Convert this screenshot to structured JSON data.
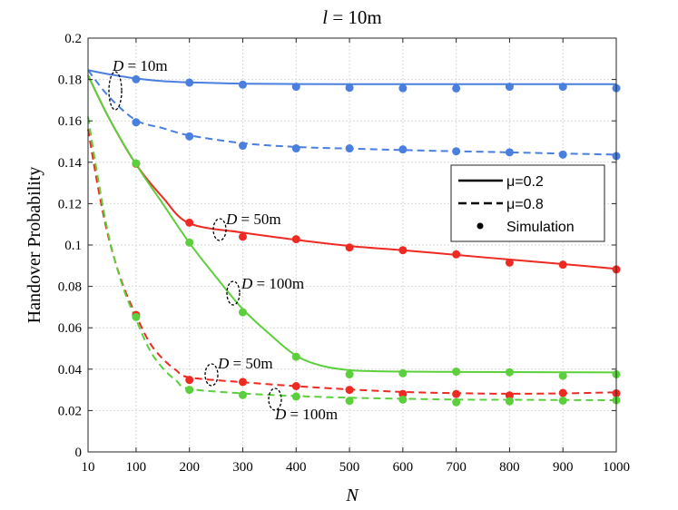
{
  "chart_data": {
    "type": "line",
    "title": {
      "var": "l",
      "rest": " = 10m"
    },
    "xlabel": "N",
    "ylabel": "Handover Probability",
    "xlim": [
      10,
      1000
    ],
    "ylim": [
      0,
      0.2
    ],
    "xticks": [
      10,
      100,
      200,
      300,
      400,
      500,
      600,
      700,
      800,
      900,
      1000
    ],
    "yticks": [
      0,
      0.02,
      0.04,
      0.06,
      0.08,
      0.1,
      0.12,
      0.14,
      0.16,
      0.18,
      0.2
    ],
    "ytick_labels": [
      "0",
      "0.02",
      "0.04",
      "0.06",
      "0.08",
      "0.1",
      "0.12",
      "0.14",
      "0.16",
      "0.18",
      "0.2"
    ],
    "grid": true,
    "legend": {
      "position": "right",
      "entries": [
        {
          "label": "μ=0.2",
          "style": "solid"
        },
        {
          "label": "μ=0.8",
          "style": "dashed"
        },
        {
          "label": "Simulation",
          "style": "marker"
        }
      ]
    },
    "colors": {
      "D10": "#4a7fe0",
      "D50": "#ee2a22",
      "D100": "#5ccf3c"
    },
    "annotations": [
      {
        "label": "D = 10m",
        "var": "D",
        "text": " = 10m"
      },
      {
        "label": "D = 50m",
        "var": "D",
        "text": " = 50m"
      },
      {
        "label": "D = 100m",
        "var": "D",
        "text": " = 100m"
      },
      {
        "label": "D = 50m",
        "var": "D",
        "text": " = 50m"
      },
      {
        "label": "D = 100m",
        "var": "D",
        "text": " = 100m"
      }
    ],
    "sim_x": [
      100,
      200,
      300,
      400,
      500,
      600,
      700,
      800,
      900,
      1000
    ],
    "series": [
      {
        "name": "D=10m, μ=0.2",
        "color_key": "D10",
        "style": "solid",
        "x": [
          10,
          50,
          100,
          150,
          200,
          300,
          400,
          500,
          600,
          700,
          800,
          900,
          1000
        ],
        "y": [
          0.1845,
          0.1825,
          0.1805,
          0.1792,
          0.1786,
          0.178,
          0.1778,
          0.1777,
          0.1777,
          0.1777,
          0.1777,
          0.1777,
          0.1777
        ],
        "sim": [
          0.1801,
          0.1785,
          0.1775,
          0.1765,
          0.176,
          0.1758,
          0.1757,
          0.1765,
          0.1765,
          0.1758
        ]
      },
      {
        "name": "D=10m, μ=0.8",
        "color_key": "D10",
        "style": "dashed",
        "x": [
          10,
          50,
          100,
          150,
          200,
          300,
          400,
          500,
          600,
          700,
          800,
          900,
          1000
        ],
        "y": [
          0.1845,
          0.1715,
          0.1603,
          0.1565,
          0.153,
          0.1492,
          0.1474,
          0.1466,
          0.1459,
          0.1453,
          0.1448,
          0.1442,
          0.1437
        ],
        "sim": [
          0.1593,
          0.1525,
          0.148,
          0.1467,
          0.1467,
          0.1462,
          0.1453,
          0.1448,
          0.1437,
          0.143
        ]
      },
      {
        "name": "D=50m, μ=0.2",
        "color_key": "D50",
        "style": "solid",
        "x": [
          10,
          50,
          100,
          150,
          200,
          300,
          400,
          500,
          600,
          700,
          800,
          900,
          1000
        ],
        "y": [
          0.182,
          0.161,
          0.139,
          0.123,
          0.1105,
          0.106,
          0.1025,
          0.0995,
          0.0975,
          0.0952,
          0.093,
          0.0908,
          0.0885
        ],
        "sim": [
          0.1393,
          0.1108,
          0.104,
          0.1028,
          0.0988,
          0.0975,
          0.0955,
          0.0915,
          0.0905,
          0.0882
        ]
      },
      {
        "name": "D=100m, μ=0.2",
        "color_key": "D100",
        "style": "solid",
        "x": [
          10,
          50,
          100,
          150,
          200,
          250,
          300,
          350,
          400,
          450,
          500,
          550,
          600,
          700,
          800,
          900,
          1000
        ],
        "y": [
          0.182,
          0.161,
          0.139,
          0.12,
          0.101,
          0.0845,
          0.069,
          0.057,
          0.0465,
          0.0415,
          0.0395,
          0.039,
          0.0388,
          0.0387,
          0.0386,
          0.0385,
          0.0384
        ],
        "sim": [
          0.1395,
          0.1012,
          0.0675,
          0.046,
          0.0375,
          0.038,
          0.0388,
          0.0385,
          0.0368,
          0.0375
        ]
      },
      {
        "name": "D=50m, μ=0.8",
        "color_key": "D50",
        "style": "dashed",
        "x": [
          10,
          30,
          50,
          75,
          100,
          125,
          150,
          175,
          200,
          300,
          400,
          500,
          600,
          700,
          800,
          900,
          1000
        ],
        "y": [
          0.156,
          0.126,
          0.102,
          0.081,
          0.066,
          0.053,
          0.045,
          0.0395,
          0.036,
          0.0337,
          0.0318,
          0.0302,
          0.029,
          0.0284,
          0.0281,
          0.0283,
          0.0288
        ],
        "sim": [
          0.0662,
          0.0348,
          0.0338,
          0.0318,
          0.03,
          0.028,
          0.028,
          0.0273,
          0.0285,
          0.0283
        ]
      },
      {
        "name": "D=100m, μ=0.8",
        "color_key": "D100",
        "style": "dashed",
        "x": [
          10,
          30,
          50,
          75,
          100,
          125,
          150,
          175,
          200,
          300,
          400,
          500,
          600,
          700,
          800,
          900,
          1000
        ],
        "y": [
          0.162,
          0.13,
          0.103,
          0.08,
          0.064,
          0.0495,
          0.0405,
          0.0345,
          0.0305,
          0.0283,
          0.027,
          0.0262,
          0.0257,
          0.0253,
          0.0252,
          0.0251,
          0.025
        ],
        "sim": [
          0.0652,
          0.03,
          0.0275,
          0.0268,
          0.0247,
          0.0253,
          0.024,
          0.0245,
          0.0248,
          0.025
        ]
      }
    ]
  }
}
